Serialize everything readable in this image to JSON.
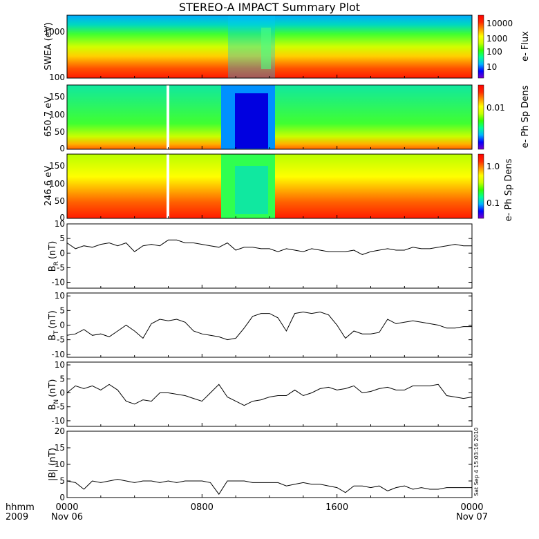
{
  "title": "STEREO-A IMPACT Summary Plot",
  "stamp": "Sat Sep  4 15:03:16 2010",
  "time_axis": {
    "row1_label": "hhmm",
    "row2_label": "2009",
    "ticks": [
      {
        "hour": 0,
        "line1": "0000",
        "line2": "Nov 06"
      },
      {
        "hour": 8,
        "line1": "0800",
        "line2": ""
      },
      {
        "hour": 16,
        "line1": "1600",
        "line2": ""
      },
      {
        "hour": 24,
        "line1": "0000",
        "line2": "Nov 07"
      }
    ],
    "range_hours": [
      0,
      24
    ]
  },
  "colorscale": {
    "stops": [
      "#7a00c8",
      "#0000ff",
      "#00b4ff",
      "#00ff96",
      "#32ff00",
      "#c8ff00",
      "#ffff00",
      "#ff9600",
      "#ff2800",
      "#ff0000"
    ]
  },
  "chart_data": [
    {
      "type": "heatmap",
      "ylabel": "SWEA (eV)",
      "yscale": "log",
      "ytick_labels": [
        "1000",
        "100"
      ],
      "colorbar": {
        "label": "e- Flux",
        "scale": "log",
        "tick_labels": [
          "10000",
          "1000",
          "100",
          "10"
        ]
      },
      "x_range_hours": [
        0,
        24
      ]
    },
    {
      "type": "heatmap",
      "ylabel": "650.7 eV",
      "ylim": [
        0,
        180
      ],
      "ytick_labels": [
        "150",
        "100",
        "50",
        "0"
      ],
      "colorbar": {
        "label": "e- Ph Sp Dens",
        "scale": "log",
        "tick_labels": [
          "0.01"
        ]
      },
      "x_range_hours": [
        0,
        24
      ]
    },
    {
      "type": "heatmap",
      "ylabel": "246.6 eV",
      "ylim": [
        0,
        180
      ],
      "ytick_labels": [
        "150",
        "100",
        "50",
        "0"
      ],
      "colorbar": {
        "label": "e- Ph Sp Dens",
        "scale": "log",
        "tick_labels": [
          "1.0",
          "0.1"
        ]
      },
      "x_range_hours": [
        0,
        24
      ]
    },
    {
      "type": "line",
      "ylabel": "BR (nT)",
      "ylabel_main": "B",
      "ylabel_sub": "R",
      "ylabel_unit": "(nT)",
      "ylim": [
        -12,
        10
      ],
      "ytick_labels": [
        "10",
        "5",
        "0",
        "-5",
        "-10"
      ],
      "x_hours": [
        0,
        0.5,
        1,
        1.5,
        2,
        2.5,
        3,
        3.5,
        4,
        4.5,
        5,
        5.5,
        6,
        6.5,
        7,
        7.5,
        8,
        8.5,
        9,
        9.5,
        10,
        10.5,
        11,
        11.5,
        12,
        12.5,
        13,
        13.5,
        14,
        14.5,
        15,
        15.5,
        16,
        16.5,
        17,
        17.5,
        18,
        18.5,
        19,
        19.5,
        20,
        20.5,
        21,
        21.5,
        22,
        22.5,
        23,
        23.5,
        24
      ],
      "y": [
        3.5,
        1.5,
        2.5,
        2,
        3,
        3.5,
        2.5,
        3.5,
        0.5,
        2.5,
        3,
        2.5,
        4.5,
        4.5,
        3.5,
        3.5,
        3,
        2.5,
        2,
        3.5,
        1,
        2,
        2,
        1.5,
        1.5,
        0.5,
        1.5,
        1,
        0.5,
        1.5,
        1,
        0.5,
        0.5,
        0.5,
        1,
        -0.5,
        0.5,
        1,
        1.5,
        1,
        1,
        2,
        1.5,
        1.5,
        2,
        2.5,
        3,
        2.5,
        2.5
      ]
    },
    {
      "type": "line",
      "ylabel": "BT (nT)",
      "ylabel_main": "B",
      "ylabel_sub": "T",
      "ylabel_unit": "(nT)",
      "ylim": [
        -11,
        11
      ],
      "ytick_labels": [
        "10",
        "5",
        "0",
        "-5",
        "-10"
      ],
      "x_hours": [
        0,
        0.5,
        1,
        1.5,
        2,
        2.5,
        3,
        3.5,
        4,
        4.5,
        5,
        5.5,
        6,
        6.5,
        7,
        7.5,
        8,
        8.5,
        9,
        9.5,
        10,
        10.5,
        11,
        11.5,
        12,
        12.5,
        13,
        13.5,
        14,
        14.5,
        15,
        15.5,
        16,
        16.5,
        17,
        17.5,
        18,
        18.5,
        19,
        19.5,
        20,
        20.5,
        21,
        21.5,
        22,
        22.5,
        23,
        23.5,
        24
      ],
      "y": [
        -3.5,
        -3,
        -1.5,
        -3.5,
        -3,
        -4,
        -2,
        0,
        -2,
        -4.5,
        0.5,
        2,
        1.5,
        2,
        1,
        -2,
        -3,
        -3.5,
        -4,
        -5,
        -4.5,
        -1,
        3,
        4,
        4,
        2.5,
        -2,
        4,
        4.5,
        4,
        4.5,
        3.5,
        0,
        -4.5,
        -2,
        -3,
        -3,
        -2.5,
        2,
        0.5,
        1,
        1.5,
        1,
        0.5,
        0,
        -1,
        -1,
        -0.5,
        -0.5
      ]
    },
    {
      "type": "line",
      "ylabel": "BN (nT)",
      "ylabel_main": "B",
      "ylabel_sub": "N",
      "ylabel_unit": "(nT)",
      "ylim": [
        -12,
        11
      ],
      "ytick_labels": [
        "10",
        "5",
        "0",
        "-5",
        "-10"
      ],
      "x_hours": [
        0,
        0.5,
        1,
        1.5,
        2,
        2.5,
        3,
        3.5,
        4,
        4.5,
        5,
        5.5,
        6,
        6.5,
        7,
        7.5,
        8,
        8.5,
        9,
        9.5,
        10,
        10.5,
        11,
        11.5,
        12,
        12.5,
        13,
        13.5,
        14,
        14.5,
        15,
        15.5,
        16,
        16.5,
        17,
        17.5,
        18,
        18.5,
        19,
        19.5,
        20,
        20.5,
        21,
        21.5,
        22,
        22.5,
        23,
        23.5,
        24
      ],
      "y": [
        0,
        2.5,
        1.5,
        2.5,
        1,
        3,
        1,
        -3,
        -4,
        -2.5,
        -3,
        0,
        0,
        -0.5,
        -1,
        -2,
        -3,
        0,
        3,
        -1.5,
        -3,
        -4.5,
        -3,
        -2.5,
        -1.5,
        -1,
        -1,
        1,
        -1,
        0,
        1.5,
        2,
        1,
        1.5,
        2.5,
        0,
        0.5,
        1.5,
        2,
        1,
        1,
        2.5,
        2.5,
        2.5,
        3,
        -1,
        -1.5,
        -2,
        -1.5
      ]
    },
    {
      "type": "line",
      "ylabel": "|B| (nT)",
      "ylabel_display": "|B| (nT)",
      "ylim": [
        0,
        20
      ],
      "ytick_labels": [
        "20",
        "15",
        "10",
        "5",
        "0"
      ],
      "x_hours": [
        0,
        0.5,
        1,
        1.5,
        2,
        2.5,
        3,
        3.5,
        4,
        4.5,
        5,
        5.5,
        6,
        6.5,
        7,
        7.5,
        8,
        8.5,
        9,
        9.5,
        10,
        10.5,
        11,
        11.5,
        12,
        12.5,
        13,
        13.5,
        14,
        14.5,
        15,
        15.5,
        16,
        16.5,
        17,
        17.5,
        18,
        18.5,
        19,
        19.5,
        20,
        20.5,
        21,
        21.5,
        22,
        22.5,
        23,
        23.5,
        24
      ],
      "y": [
        5,
        4.5,
        2.5,
        5,
        4.5,
        5,
        5.5,
        5,
        4.5,
        5,
        5,
        4.5,
        5,
        4.5,
        5,
        5,
        5,
        4.5,
        1,
        5,
        5,
        5,
        4.5,
        4.5,
        4.5,
        4.5,
        3.5,
        4,
        4.5,
        4,
        4,
        3.5,
        3,
        1.5,
        3.5,
        3.5,
        3,
        3.5,
        2,
        3,
        3.5,
        2.5,
        3,
        2.5,
        2.5,
        3,
        3,
        3,
        3
      ]
    }
  ]
}
